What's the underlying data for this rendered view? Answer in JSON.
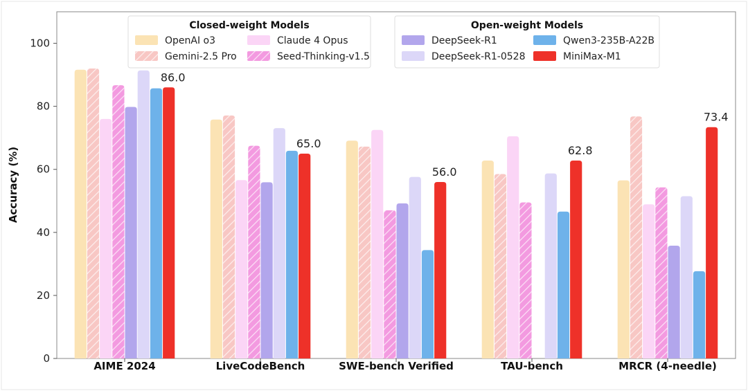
{
  "chart_data": {
    "type": "bar",
    "ylabel": "Accuracy (%)",
    "ylim": [
      0,
      110
    ],
    "yticks": [
      0,
      20,
      40,
      60,
      80,
      100
    ],
    "categories": [
      "AIME 2024",
      "LiveCodeBench",
      "SWE-bench Verified",
      "TAU-bench",
      "MRCR (4-needle)"
    ],
    "legend_groups": [
      {
        "title": "Closed-weight Models",
        "series_indices": [
          0,
          1,
          2,
          3
        ]
      },
      {
        "title": "Open-weight Models",
        "series_indices": [
          4,
          5,
          6,
          7
        ]
      }
    ],
    "series": [
      {
        "name": "OpenAI o3",
        "color": "#fbe3b4",
        "hatch": false,
        "values": [
          91.6,
          75.8,
          69.1,
          62.8,
          56.5
        ]
      },
      {
        "name": "Gemini-2.5 Pro",
        "color": "#f8c7c4",
        "hatch": true,
        "values": [
          92.0,
          77.1,
          67.2,
          58.5,
          76.8
        ]
      },
      {
        "name": "Claude 4 Opus",
        "color": "#fbd5f6",
        "hatch": false,
        "values": [
          76.0,
          56.6,
          72.5,
          70.5,
          48.9
        ]
      },
      {
        "name": "Seed-Thinking-v1.5",
        "color": "#f39ae0",
        "hatch": true,
        "values": [
          86.7,
          67.5,
          47.0,
          49.5,
          54.3
        ]
      },
      {
        "name": "DeepSeek-R1",
        "color": "#b2a6ec",
        "hatch": false,
        "values": [
          79.8,
          55.9,
          49.2,
          null,
          35.8
        ]
      },
      {
        "name": "DeepSeek-R1-0528",
        "color": "#dcd7f8",
        "hatch": false,
        "values": [
          91.4,
          73.1,
          57.6,
          58.7,
          51.5
        ]
      },
      {
        "name": "Qwen3-235B-A22B",
        "color": "#6eb2ea",
        "hatch": false,
        "values": [
          85.7,
          65.9,
          34.4,
          46.6,
          27.7
        ]
      },
      {
        "name": "MiniMax-M1",
        "color": "#ee3129",
        "hatch": false,
        "values": [
          86.0,
          65.0,
          56.0,
          62.8,
          73.4
        ]
      }
    ],
    "data_labels": [
      {
        "series_index": 7,
        "category_index": 0,
        "text": "86.0"
      },
      {
        "series_index": 7,
        "category_index": 1,
        "text": "65.0"
      },
      {
        "series_index": 7,
        "category_index": 2,
        "text": "56.0"
      },
      {
        "series_index": 7,
        "category_index": 3,
        "text": "62.8"
      },
      {
        "series_index": 7,
        "category_index": 4,
        "text": "73.4"
      }
    ],
    "grid": false,
    "legend_placement": "top"
  }
}
